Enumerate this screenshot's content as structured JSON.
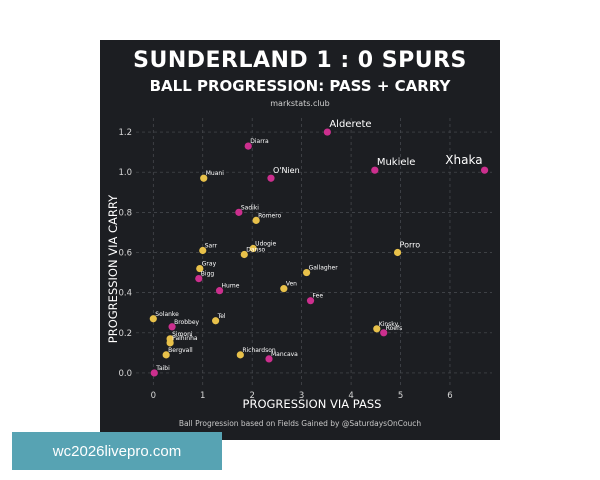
{
  "header": {
    "title": "SUNDERLAND 1 : 0 SPURS",
    "subtitle": "BALL PROGRESSION: PASS + CARRY",
    "source": "markstats.club"
  },
  "footer": "Ball Progression based on Fields Gained by @SaturdaysOnCouch",
  "watermark": "wc2026livepro.com",
  "colors": {
    "background": "#1c1e22",
    "sunderland": "#e8c14a",
    "spurs": "#cc2f8e",
    "grid": "#4a4d52",
    "axis_text": "#d8d8d8"
  },
  "chart_data": {
    "type": "scatter",
    "title": "SUNDERLAND 1 : 0 SPURS",
    "subtitle": "BALL PROGRESSION: PASS + CARRY",
    "xlabel": "PROGRESSION VIA PASS",
    "ylabel": "PROGRESSION VIA CARRY",
    "xlim": [
      -0.35,
      6.85
    ],
    "ylim": [
      -0.06,
      1.27
    ],
    "xticks": [
      0,
      1,
      2,
      3,
      4,
      5,
      6
    ],
    "yticks": [
      0.0,
      0.2,
      0.4,
      0.6,
      0.8,
      1.0,
      1.2
    ],
    "grid": true,
    "points": [
      {
        "label": "Alderete",
        "x": 3.52,
        "y": 1.2,
        "team": "spurs",
        "size": "large"
      },
      {
        "label": "Diarra",
        "x": 1.92,
        "y": 1.13,
        "team": "spurs",
        "size": "small"
      },
      {
        "label": "Mukiele",
        "x": 4.48,
        "y": 1.01,
        "team": "spurs",
        "size": "large"
      },
      {
        "label": "Xhaka",
        "x": 6.7,
        "y": 1.01,
        "team": "spurs",
        "size": "xlarge"
      },
      {
        "label": "Muani",
        "x": 1.02,
        "y": 0.97,
        "team": "sunderland",
        "size": "small"
      },
      {
        "label": "O'Nien",
        "x": 2.38,
        "y": 0.97,
        "team": "spurs",
        "size": "medium"
      },
      {
        "label": "Sadiki",
        "x": 1.73,
        "y": 0.8,
        "team": "spurs",
        "size": "small"
      },
      {
        "label": "Romero",
        "x": 2.08,
        "y": 0.76,
        "team": "sunderland",
        "size": "small"
      },
      {
        "label": "Sarr",
        "x": 1.0,
        "y": 0.61,
        "team": "sunderland",
        "size": "small"
      },
      {
        "label": "Udogie",
        "x": 2.02,
        "y": 0.62,
        "team": "sunderland",
        "size": "small"
      },
      {
        "label": "Danso",
        "x": 1.84,
        "y": 0.59,
        "team": "sunderland",
        "size": "small"
      },
      {
        "label": "Porro",
        "x": 4.94,
        "y": 0.6,
        "team": "sunderland",
        "size": "medium"
      },
      {
        "label": "Gray",
        "x": 0.94,
        "y": 0.52,
        "team": "sunderland",
        "size": "small"
      },
      {
        "label": "Bigg",
        "x": 0.92,
        "y": 0.47,
        "team": "spurs",
        "size": "small"
      },
      {
        "label": "Gallagher",
        "x": 3.1,
        "y": 0.5,
        "team": "sunderland",
        "size": "small"
      },
      {
        "label": "Hume",
        "x": 1.34,
        "y": 0.41,
        "team": "spurs",
        "size": "small"
      },
      {
        "label": "Ven",
        "x": 2.64,
        "y": 0.42,
        "team": "sunderland",
        "size": "small"
      },
      {
        "label": "Fee",
        "x": 3.18,
        "y": 0.36,
        "team": "spurs",
        "size": "small"
      },
      {
        "label": "Tel",
        "x": 1.26,
        "y": 0.26,
        "team": "sunderland",
        "size": "small"
      },
      {
        "label": "Solanke",
        "x": 0.0,
        "y": 0.27,
        "team": "sunderland",
        "size": "small"
      },
      {
        "label": "Kinsky",
        "x": 4.52,
        "y": 0.22,
        "team": "sunderland",
        "size": "small"
      },
      {
        "label": "Roefs",
        "x": 4.66,
        "y": 0.2,
        "team": "spurs",
        "size": "small"
      },
      {
        "label": "Brobbey",
        "x": 0.38,
        "y": 0.23,
        "team": "spurs",
        "size": "small"
      },
      {
        "label": "Simoni",
        "x": 0.34,
        "y": 0.17,
        "team": "sunderland",
        "size": "small"
      },
      {
        "label": "Palhinha",
        "x": 0.34,
        "y": 0.15,
        "team": "sunderland",
        "size": "small"
      },
      {
        "label": "Bergvall",
        "x": 0.26,
        "y": 0.09,
        "team": "sunderland",
        "size": "small"
      },
      {
        "label": "Richardson",
        "x": 1.76,
        "y": 0.09,
        "team": "sunderland",
        "size": "small"
      },
      {
        "label": "Mancava",
        "x": 2.34,
        "y": 0.07,
        "team": "spurs",
        "size": "small"
      },
      {
        "label": "Taibi",
        "x": 0.02,
        "y": 0.0,
        "team": "spurs",
        "size": "small"
      }
    ]
  }
}
